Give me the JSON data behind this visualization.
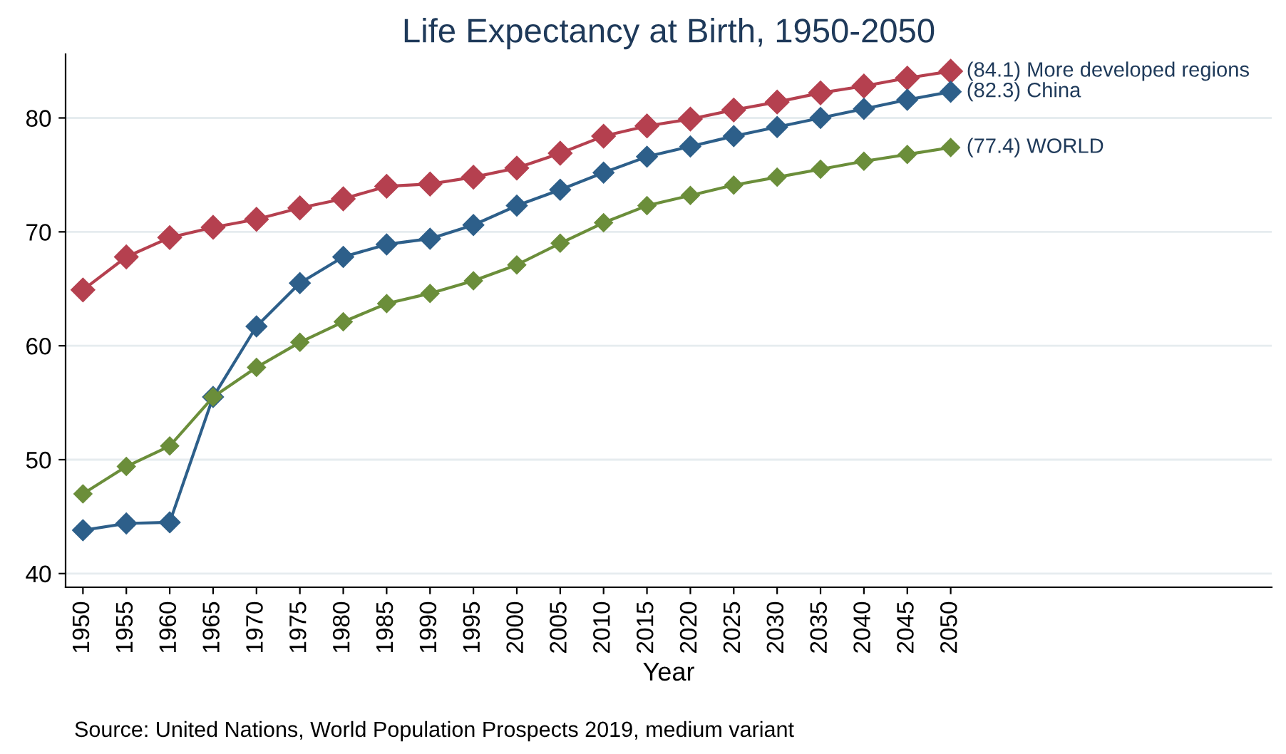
{
  "chart_data": {
    "type": "line",
    "title": "Life Expectancy at Birth, 1950-2050",
    "xlabel": "Year",
    "x": [
      1950,
      1955,
      1960,
      1965,
      1970,
      1975,
      1980,
      1985,
      1990,
      1995,
      2000,
      2005,
      2010,
      2015,
      2020,
      2025,
      2030,
      2035,
      2040,
      2045,
      2050
    ],
    "series": [
      {
        "name": "(84.1) More developed regions",
        "color": "#b5404f",
        "values": [
          64.9,
          67.8,
          69.5,
          70.4,
          71.1,
          72.1,
          72.9,
          74.0,
          74.2,
          74.8,
          75.6,
          76.9,
          78.4,
          79.3,
          79.9,
          80.7,
          81.4,
          82.2,
          82.8,
          83.5,
          84.1
        ]
      },
      {
        "name": "(82.3) China",
        "color": "#2d5f8a",
        "values": [
          43.8,
          44.4,
          44.5,
          55.5,
          61.7,
          65.5,
          67.8,
          68.9,
          69.4,
          70.6,
          72.3,
          73.7,
          75.2,
          76.6,
          77.5,
          78.4,
          79.2,
          80.0,
          80.8,
          81.6,
          82.3
        ]
      },
      {
        "name": "(77.4) WORLD",
        "color": "#6b8e3a",
        "values": [
          47.0,
          49.4,
          51.2,
          55.5,
          58.1,
          60.3,
          62.1,
          63.7,
          64.6,
          65.7,
          67.1,
          69.0,
          70.8,
          72.3,
          73.2,
          74.1,
          74.8,
          75.5,
          76.2,
          76.8,
          77.4
        ]
      }
    ],
    "xlim": [
      1948,
      2087
    ],
    "xticks": [
      1950,
      1955,
      1960,
      1965,
      1970,
      1975,
      1980,
      1985,
      1990,
      1995,
      2000,
      2005,
      2010,
      2015,
      2020,
      2025,
      2030,
      2035,
      2040,
      2045,
      2050
    ],
    "ylim": [
      38.8,
      85.6
    ],
    "yticks": [
      40,
      50,
      60,
      70,
      80
    ],
    "grid": "y",
    "legend": false,
    "marker": "diamond",
    "line_style": "solid",
    "annotations": [
      "Source: United Nations, World Population Prospects 2019, medium variant"
    ]
  }
}
